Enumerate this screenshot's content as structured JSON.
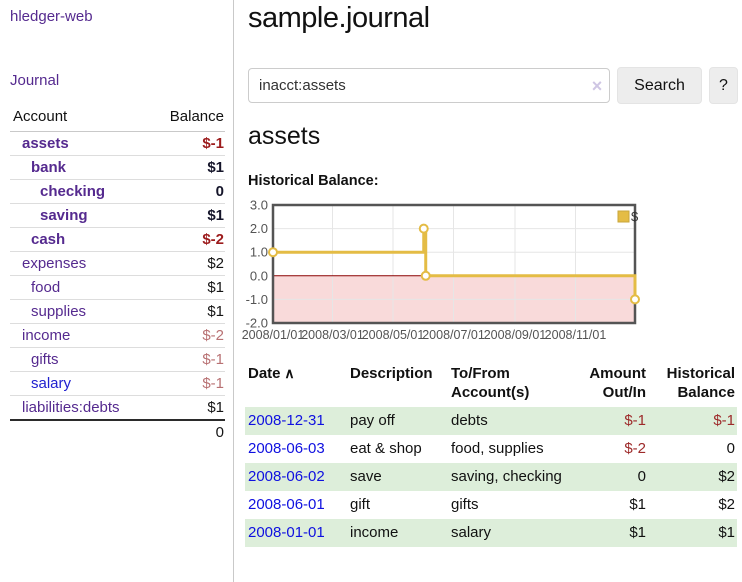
{
  "app": {
    "title": "hledger-web"
  },
  "sidebar": {
    "nav_journal": "Journal",
    "table": {
      "headers": [
        "Account",
        "Balance"
      ],
      "rows": [
        {
          "name": "assets",
          "indent": 1,
          "bold": true,
          "balance": "$-1",
          "balance_class": "neg-strong",
          "link": "purple"
        },
        {
          "name": "bank",
          "indent": 2,
          "bold": true,
          "balance": "$1",
          "balance_class": "pos-strong",
          "link": "purple"
        },
        {
          "name": "checking",
          "indent": 3,
          "bold": true,
          "balance": "0",
          "balance_class": "pos-strong",
          "link": "purple"
        },
        {
          "name": "saving",
          "indent": 3,
          "bold": true,
          "balance": "$1",
          "balance_class": "pos-strong",
          "link": "purple"
        },
        {
          "name": "cash",
          "indent": 2,
          "bold": true,
          "balance": "$-2",
          "balance_class": "neg-strong",
          "link": "purple"
        },
        {
          "name": "expenses",
          "indent": 1,
          "bold": false,
          "balance": "$2",
          "balance_class": "pos",
          "link": "purple"
        },
        {
          "name": "food",
          "indent": 2,
          "bold": false,
          "balance": "$1",
          "balance_class": "pos",
          "link": "purple"
        },
        {
          "name": "supplies",
          "indent": 2,
          "bold": false,
          "balance": "$1",
          "balance_class": "pos",
          "link": "purple"
        },
        {
          "name": "income",
          "indent": 1,
          "bold": false,
          "balance": "$-2",
          "balance_class": "neg-soft",
          "link": "purple"
        },
        {
          "name": "gifts",
          "indent": 2,
          "bold": false,
          "balance": "$-1",
          "balance_class": "neg-soft",
          "link": "purple"
        },
        {
          "name": "salary",
          "indent": 2,
          "bold": false,
          "balance": "$-1",
          "balance_class": "neg-soft",
          "link": "blue"
        },
        {
          "name": "liabilities:debts",
          "indent": 1,
          "bold": false,
          "balance": "$1",
          "balance_class": "pos",
          "link": "purple"
        }
      ],
      "total": "0"
    }
  },
  "main": {
    "title": "sample.journal",
    "search": {
      "value": "inacct:assets",
      "clear_icon": "×",
      "button": "Search",
      "help_button": "?"
    },
    "heading": "assets",
    "chart_title": "Historical Balance:"
  },
  "chart_data": {
    "type": "line",
    "style": "step",
    "title": "Historical Balance:",
    "legend": "$",
    "legend_position": "top-right",
    "series": [
      {
        "name": "$",
        "points": [
          {
            "date": "2008/01/01",
            "value": 1
          },
          {
            "date": "2008/06/01",
            "value": 2
          },
          {
            "date": "2008/06/03",
            "value": 0
          },
          {
            "date": "2008/12/31",
            "value": -1
          }
        ]
      }
    ],
    "x_range": [
      "2008/01/01",
      "2008/12/31"
    ],
    "x_ticks": [
      "2008/01/01",
      "2008/03/01",
      "2008/05/01",
      "2008/07/01",
      "2008/09/01",
      "2008/11/01"
    ],
    "y_ticks": [
      "3.0",
      "2.0",
      "1.0",
      "0.0",
      "-1.0",
      "-2.0"
    ],
    "ylim": [
      -2,
      3
    ],
    "grid": true,
    "colors": {
      "line": "#e4bc45",
      "marker_fill": "#ffffff",
      "negative_fill": "#f9dada",
      "zero_line": "#8b0000",
      "gridline": "#e6e6e6",
      "border": "#545454",
      "tick_text": "#545454"
    }
  },
  "register": {
    "headers": [
      {
        "line1": "Date",
        "line2": "",
        "align": "left",
        "sortable": true
      },
      {
        "line1": "Description",
        "line2": "",
        "align": "left"
      },
      {
        "line1": "To/From",
        "line2": "Account(s)",
        "align": "left"
      },
      {
        "line1": "Amount",
        "line2": "Out/In",
        "align": "right"
      },
      {
        "line1": "Historical",
        "line2": "Balance",
        "align": "right"
      }
    ],
    "sort_icon": "∧",
    "rows": [
      {
        "date": "2008-12-31",
        "description": "pay off",
        "accounts": "debts",
        "amount": "$-1",
        "amount_neg": true,
        "balance": "$-1",
        "balance_neg": true
      },
      {
        "date": "2008-06-03",
        "description": "eat & shop",
        "accounts": "food, supplies",
        "amount": "$-2",
        "amount_neg": true,
        "balance": "0",
        "balance_neg": false
      },
      {
        "date": "2008-06-02",
        "description": "save",
        "accounts": "saving, checking",
        "amount": "0",
        "amount_neg": false,
        "balance": "$2",
        "balance_neg": false
      },
      {
        "date": "2008-06-01",
        "description": "gift",
        "accounts": "gifts",
        "amount": "$1",
        "amount_neg": false,
        "balance": "$2",
        "balance_neg": false
      },
      {
        "date": "2008-01-01",
        "description": "income",
        "accounts": "salary",
        "amount": "$1",
        "amount_neg": false,
        "balance": "$1",
        "balance_neg": false
      }
    ]
  },
  "colors": {
    "link_purple": "#552a8f",
    "link_blue": "#2121cf",
    "date_link_blue": "#0f10e0",
    "negative_strong": "#9c1b1c",
    "negative_soft": "#b87173",
    "register_negative": "#9d2a2a",
    "row_stripe_green": "#ddeeda"
  }
}
